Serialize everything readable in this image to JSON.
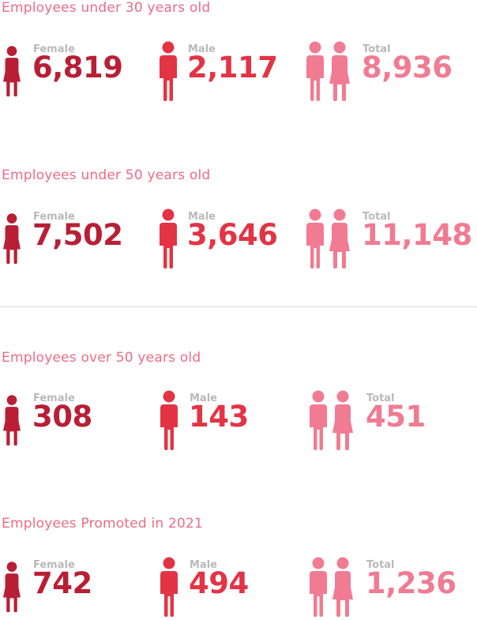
{
  "colors": {
    "title": "#ec6b86",
    "female": "#b81f35",
    "male": "#e23445",
    "total": "#f07b92",
    "label": "#b9b9b9",
    "divider": "#dcdcdc"
  },
  "icons": {
    "female": "female-figure-icon",
    "male": "male-figure-icon",
    "total": "couple-figure-icon"
  },
  "sections": [
    {
      "title": "Employees under 30 years old",
      "female": {
        "label": "Female",
        "value": "6,819"
      },
      "male": {
        "label": "Male",
        "value": "2,117"
      },
      "total": {
        "label": "Total",
        "value": "8,936"
      }
    },
    {
      "title": "Employees under 50 years old",
      "female": {
        "label": "Female",
        "value": "7,502"
      },
      "male": {
        "label": "Male",
        "value": "3,646"
      },
      "total": {
        "label": "Total",
        "value": "11,148"
      }
    },
    {
      "title": "Employees over 50 years old",
      "female": {
        "label": "Female",
        "value": "308"
      },
      "male": {
        "label": "Male",
        "value": "143"
      },
      "total": {
        "label": "Total",
        "value": "451"
      }
    },
    {
      "title": "Employees Promoted in 2021",
      "female": {
        "label": "Female",
        "value": "742"
      },
      "male": {
        "label": "Male",
        "value": "494"
      },
      "total": {
        "label": "Total",
        "value": "1,236"
      }
    }
  ]
}
